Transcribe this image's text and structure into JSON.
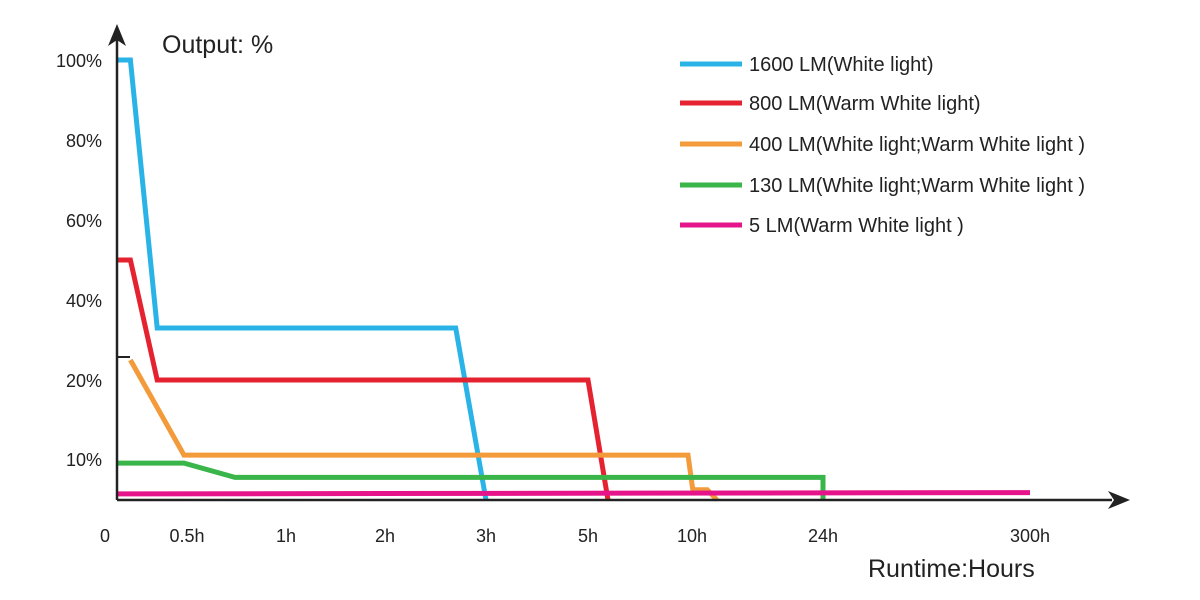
{
  "chart_data": {
    "type": "line",
    "title": "Output: %",
    "xlabel": "Runtime:Hours",
    "ylabel": "",
    "x_ticks": [
      "0",
      "0.5h",
      "1h",
      "2h",
      "3h",
      "5h",
      "10h",
      "24h",
      "300h"
    ],
    "y_ticks": [
      "10%",
      "20%",
      "40%",
      "60%",
      "80%",
      "100%"
    ],
    "y_tick_values": [
      10,
      20,
      40,
      60,
      80,
      100
    ],
    "x_scale": "categorical-nonlinear",
    "ylim": [
      0,
      100
    ],
    "grid": false,
    "legend_position": "top-right",
    "series": [
      {
        "name": "1600 LM(White light)",
        "color": "#2AB3E6",
        "points": [
          [
            0,
            100
          ],
          [
            0.1,
            100
          ],
          [
            0.3,
            33
          ],
          [
            2.7,
            33
          ],
          [
            3,
            0
          ]
        ]
      },
      {
        "name": "800 LM(Warm White light)",
        "color": "#E52330",
        "points": [
          [
            0,
            50
          ],
          [
            0.1,
            50
          ],
          [
            0.3,
            20
          ],
          [
            5,
            20
          ],
          [
            6,
            0
          ]
        ]
      },
      {
        "name": "400 LM(White light;Warm White light )",
        "color": "#F39A3A",
        "points": [
          [
            0.1,
            25
          ],
          [
            0.5,
            10.5
          ],
          [
            10,
            10.5
          ],
          [
            10.5,
            2.5
          ],
          [
            12,
            2.5
          ],
          [
            13,
            0
          ]
        ]
      },
      {
        "name": "130 LM(White light;Warm White light )",
        "color": "#3AB54A",
        "points": [
          [
            0,
            9
          ],
          [
            0.5,
            9
          ],
          [
            0.75,
            5.5
          ],
          [
            24,
            5.5
          ],
          [
            24,
            0
          ]
        ]
      },
      {
        "name": "5 LM(Warm White light )",
        "color": "#E5148B",
        "points": [
          [
            0,
            1.5
          ],
          [
            300,
            1.8
          ]
        ]
      }
    ]
  }
}
